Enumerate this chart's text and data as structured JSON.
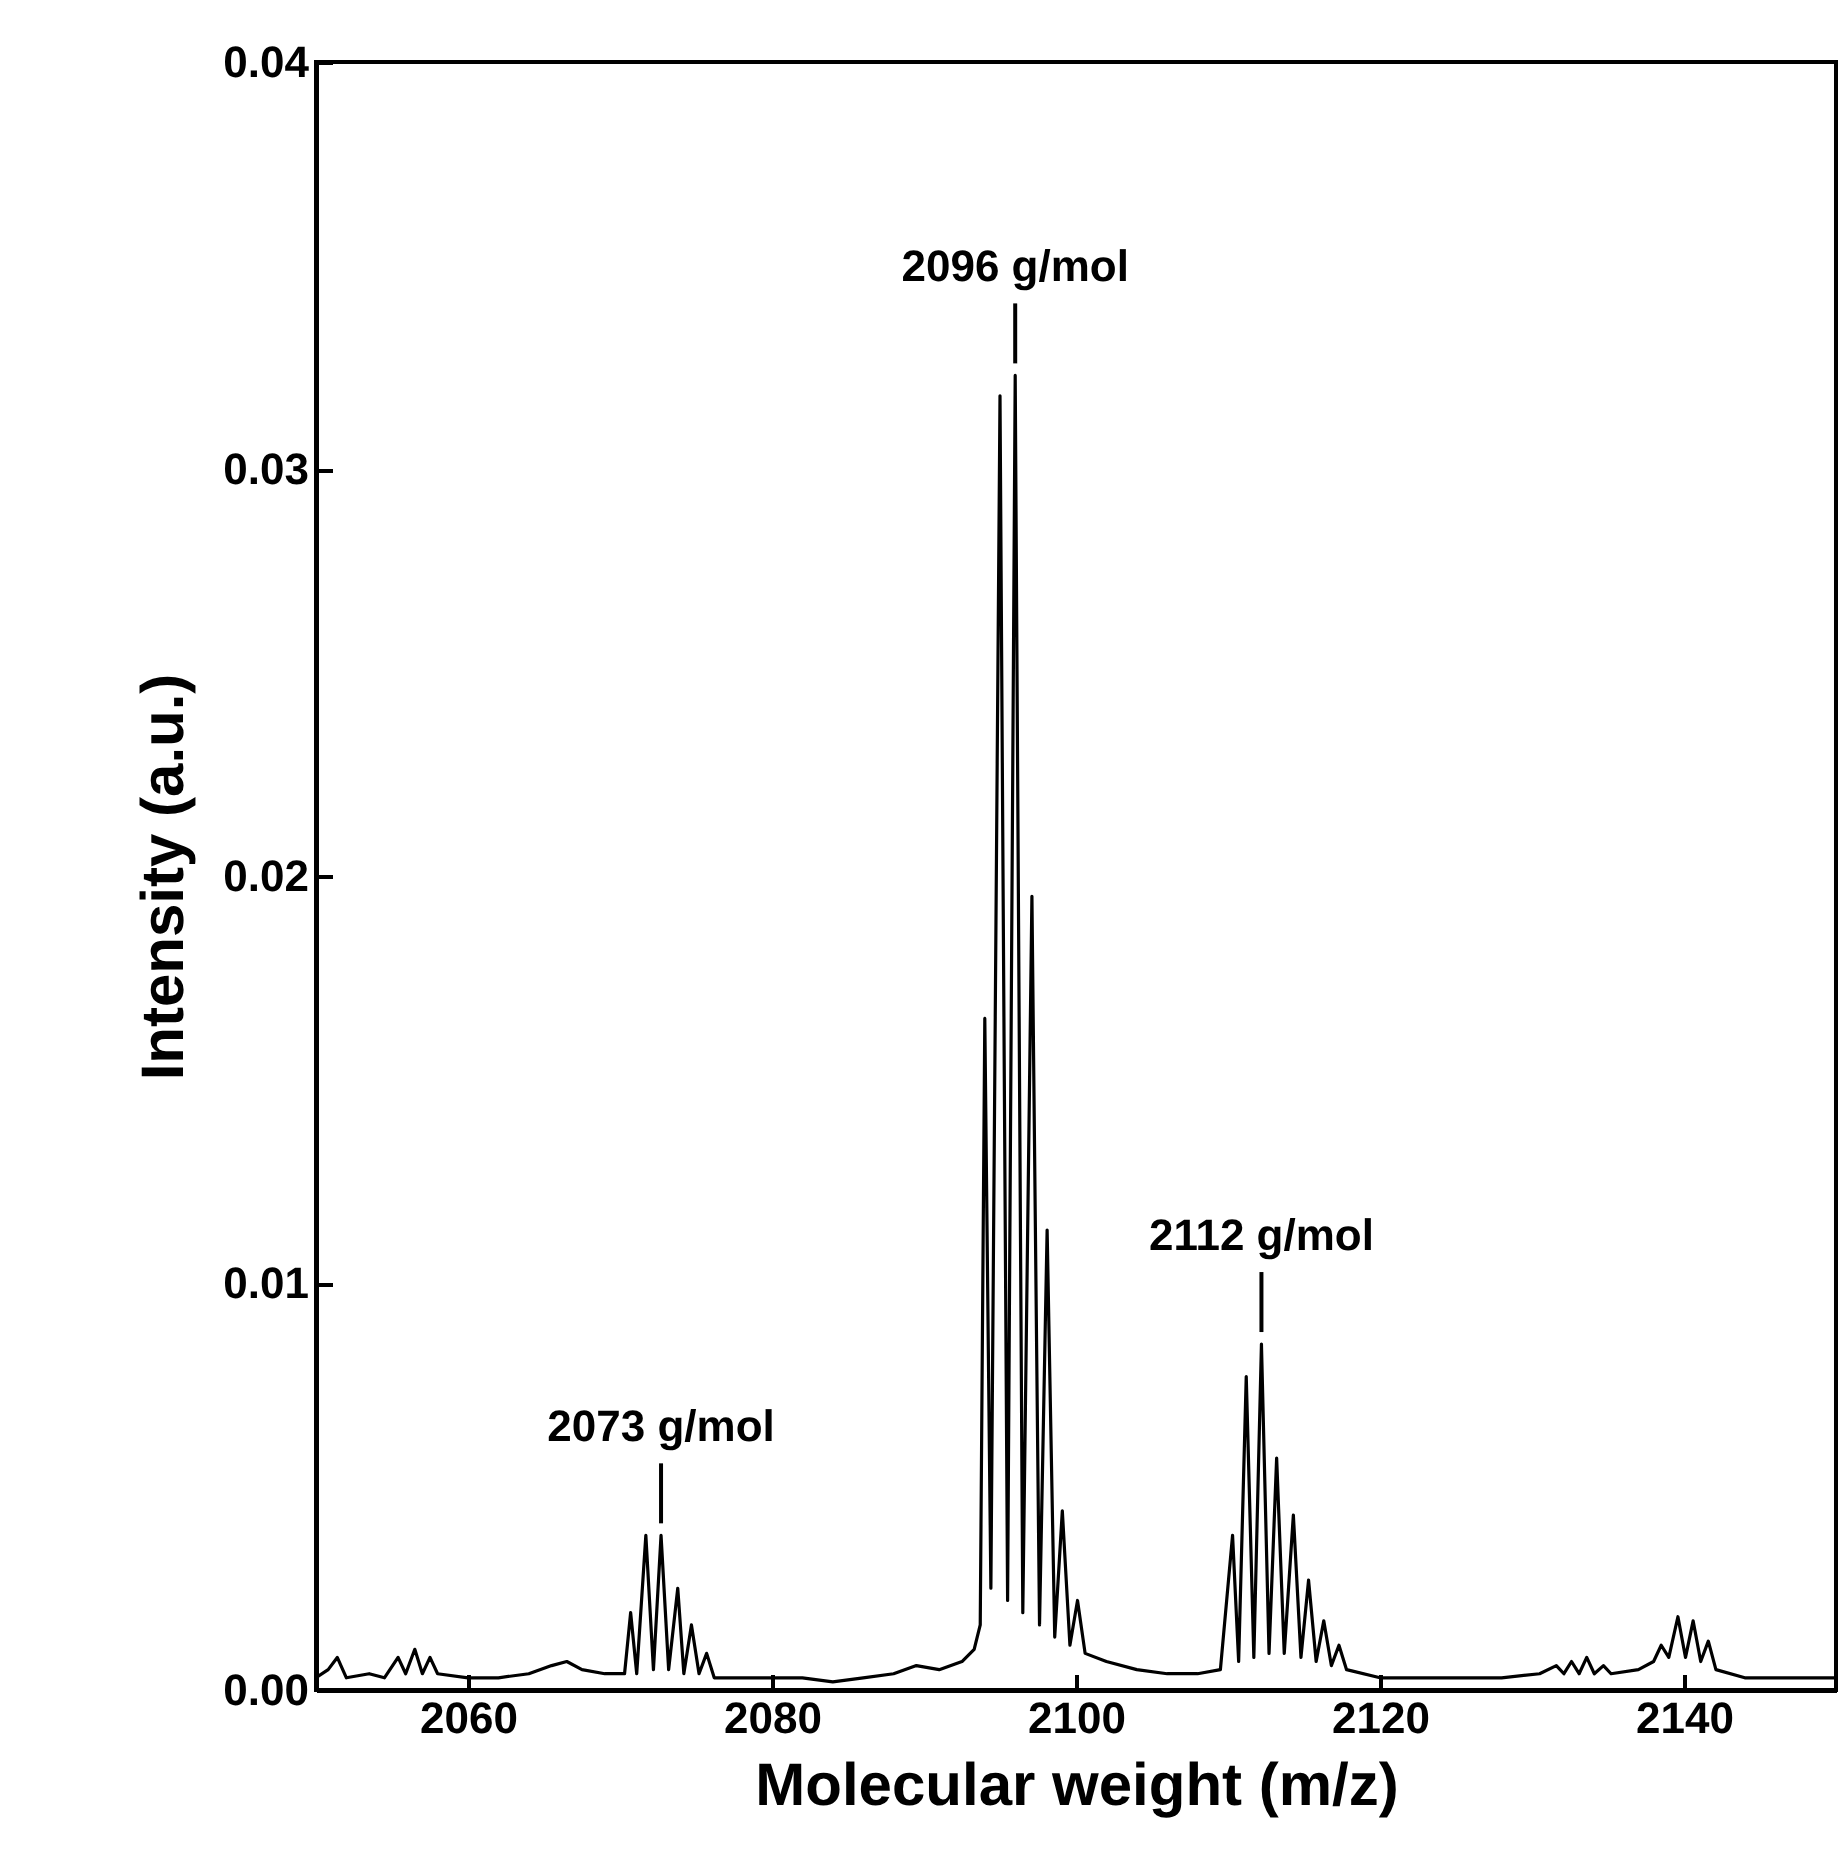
{
  "chart_data": {
    "type": "line",
    "xlabel": "Molecular weight (m/z)",
    "ylabel": "Intensity (a.u.)",
    "xlim": [
      2050,
      2150
    ],
    "xticks": [
      2060,
      2080,
      2100,
      2120,
      2140
    ],
    "ylim": [
      0,
      0.04
    ],
    "yticks": [
      {
        "value": 0,
        "label": "0.00"
      },
      {
        "value": 0.01,
        "label": "0.01"
      },
      {
        "value": 0.02,
        "label": "0.02"
      },
      {
        "value": 0.03,
        "label": "0.03"
      },
      {
        "value": 0.04,
        "label": "0.04"
      }
    ],
    "grid": false,
    "marker": "none",
    "line_style": "solid",
    "series": [
      {
        "color": "#000000",
        "x": [
          2050,
          2050.8,
          2051.4,
          2052,
          2053.5,
          2054.5,
          2055.4,
          2055.9,
          2056.5,
          2057,
          2057.5,
          2058,
          2060,
          2062,
          2064,
          2065.5,
          2066.5,
          2067.5,
          2069,
          2070.3,
          2070.7,
          2071.1,
          2071.7,
          2072.2,
          2072.7,
          2073.2,
          2073.8,
          2074.2,
          2074.7,
          2075.2,
          2075.7,
          2076.2,
          2078,
          2080,
          2082,
          2084,
          2086,
          2088,
          2089.5,
          2091,
          2092.5,
          2093.3,
          2093.7,
          2094.0,
          2094.4,
          2095.0,
          2095.5,
          2096.0,
          2096.5,
          2097.1,
          2097.6,
          2098.1,
          2098.6,
          2099.1,
          2099.6,
          2100.1,
          2100.6,
          2102,
          2104,
          2106,
          2108,
          2109.5,
          2110.3,
          2110.7,
          2111.2,
          2111.7,
          2112.2,
          2112.7,
          2113.2,
          2113.7,
          2114.3,
          2114.8,
          2115.3,
          2115.8,
          2116.3,
          2116.8,
          2117.3,
          2117.8,
          2120,
          2124,
          2128,
          2130.5,
          2131.6,
          2132.1,
          2132.6,
          2133.1,
          2133.6,
          2134.1,
          2134.7,
          2135.2,
          2137,
          2138,
          2138.5,
          2139,
          2139.6,
          2140.1,
          2140.6,
          2141.1,
          2141.6,
          2142.1,
          2144,
          2147,
          2150
        ],
        "values": [
          0.0003,
          0.0005,
          0.0008,
          0.0003,
          0.0004,
          0.0003,
          0.0008,
          0.0004,
          0.001,
          0.0004,
          0.0008,
          0.0004,
          0.0003,
          0.0003,
          0.0004,
          0.0006,
          0.0007,
          0.0005,
          0.0004,
          0.0004,
          0.0019,
          0.0004,
          0.0038,
          0.0005,
          0.0038,
          0.0005,
          0.0025,
          0.0004,
          0.0016,
          0.0004,
          0.0009,
          0.0003,
          0.0003,
          0.0003,
          0.0003,
          0.0002,
          0.0003,
          0.0004,
          0.0006,
          0.0005,
          0.0007,
          0.001,
          0.0016,
          0.0165,
          0.0025,
          0.0318,
          0.0022,
          0.0323,
          0.0019,
          0.0195,
          0.0016,
          0.0113,
          0.0013,
          0.0044,
          0.0011,
          0.0022,
          0.0009,
          0.0007,
          0.0005,
          0.0004,
          0.0004,
          0.0005,
          0.0038,
          0.0007,
          0.0077,
          0.0008,
          0.0085,
          0.0009,
          0.0057,
          0.0009,
          0.0043,
          0.0008,
          0.0027,
          0.0007,
          0.0017,
          0.0006,
          0.0011,
          0.0005,
          0.0003,
          0.0003,
          0.0003,
          0.0004,
          0.0006,
          0.0004,
          0.0007,
          0.0004,
          0.0008,
          0.0004,
          0.0006,
          0.0004,
          0.0005,
          0.0007,
          0.0011,
          0.0008,
          0.0018,
          0.0008,
          0.0017,
          0.0007,
          0.0012,
          0.0005,
          0.0003,
          0.0003,
          0.0003
        ]
      }
    ],
    "annotations": [
      {
        "text": "2073 g/mol",
        "x": 2072.7,
        "y": 0.0038
      },
      {
        "text": "2096 g/mol",
        "x": 2096.0,
        "y": 0.0323
      },
      {
        "text": "2112 g/mol",
        "x": 2112.2,
        "y": 0.0085
      }
    ]
  }
}
